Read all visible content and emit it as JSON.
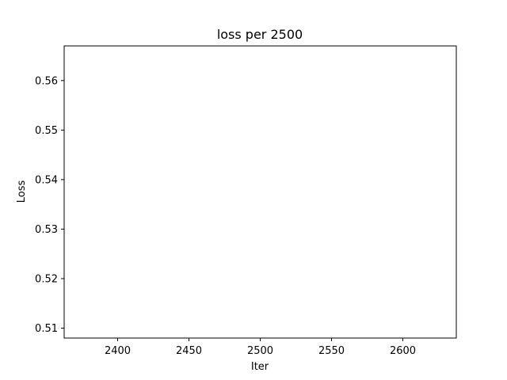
{
  "chart_data": {
    "type": "line",
    "title": "loss per 2500",
    "xlabel": "Iter",
    "ylabel": "Loss",
    "x_ticks": [
      2400,
      2450,
      2500,
      2550,
      2600
    ],
    "y_ticks": [
      0.51,
      0.52,
      0.53,
      0.54,
      0.55,
      0.56
    ],
    "x_tick_labels": [
      "2400",
      "2450",
      "2500",
      "2550",
      "2600"
    ],
    "y_tick_labels": [
      "0.51",
      "0.52",
      "0.53",
      "0.54",
      "0.55",
      "0.56"
    ],
    "xlim": [
      2362.5,
      2637.5
    ],
    "ylim": [
      0.508,
      0.567
    ],
    "series": [
      {
        "x": [],
        "y": []
      }
    ],
    "grid": false,
    "legend": "none"
  },
  "colors": {
    "axes": "#000000",
    "background": "#ffffff",
    "series": "#1f77b4"
  }
}
